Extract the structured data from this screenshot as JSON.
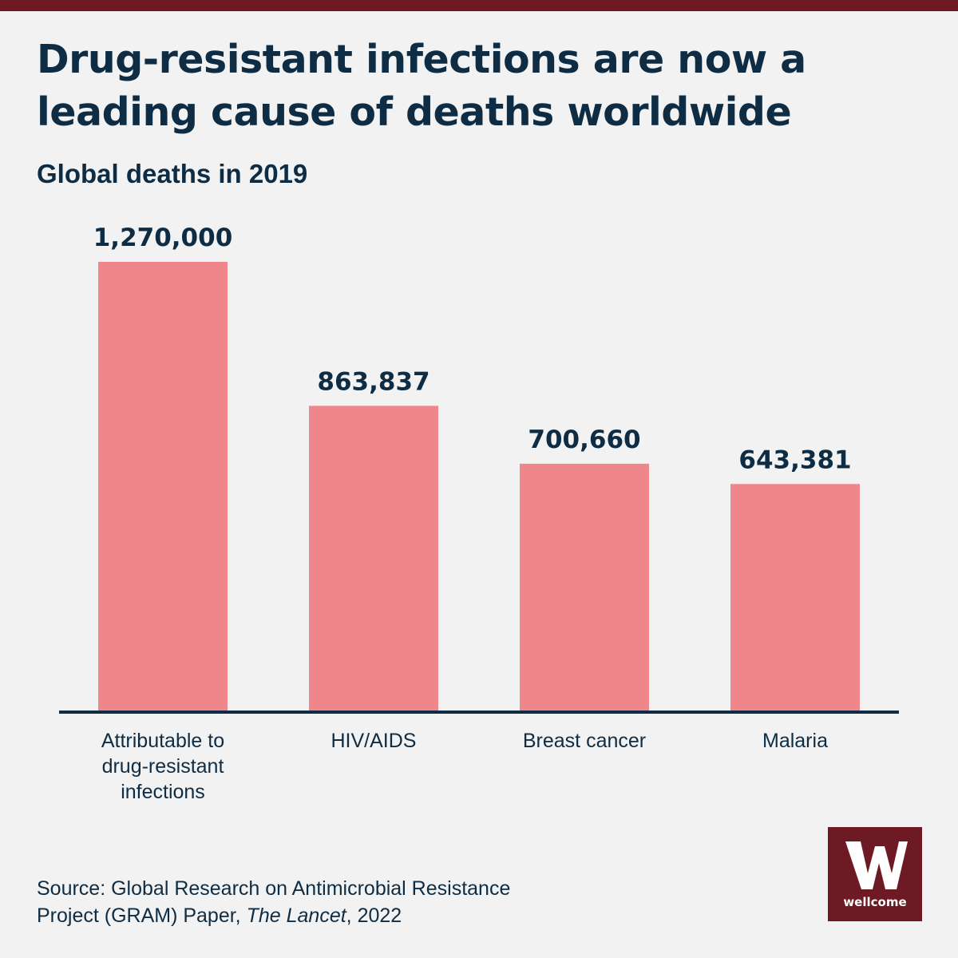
{
  "title": "Drug-resistant infections are now a leading cause of deaths worldwide",
  "subtitle": "Global deaths in 2019",
  "chart_data": {
    "type": "bar",
    "title": "Drug-resistant infections are now a leading cause of deaths worldwide",
    "subtitle": "Global deaths in 2019",
    "categories": [
      "Attributable to drug-resistant infections",
      "HIV/AIDS",
      "Breast cancer",
      "Malaria"
    ],
    "category_lines": [
      [
        "Attributable to",
        "drug-resistant",
        "infections"
      ],
      [
        "HIV/AIDS"
      ],
      [
        "Breast cancer"
      ],
      [
        "Malaria"
      ]
    ],
    "values": [
      1270000,
      863837,
      700660,
      643381
    ],
    "value_labels": [
      "1,270,000",
      "863,837",
      "700,660",
      "643,381"
    ],
    "ylim": [
      0,
      1270000
    ],
    "grid": false,
    "bar_color": "#ee868c",
    "axis_color": "#0e2d44"
  },
  "source": {
    "line1": "Source: Global Research on Antimicrobial Resistance",
    "line2_prefix": "Project (GRAM) Paper, ",
    "line2_italic": "The Lancet",
    "line2_suffix": ", 2022"
  },
  "logo": {
    "word": "wellcome",
    "icon": "wellcome-w-logo-icon"
  },
  "colors": {
    "brand": "#6e1a24",
    "text": "#0e2d44",
    "background": "#f2f2f2"
  }
}
